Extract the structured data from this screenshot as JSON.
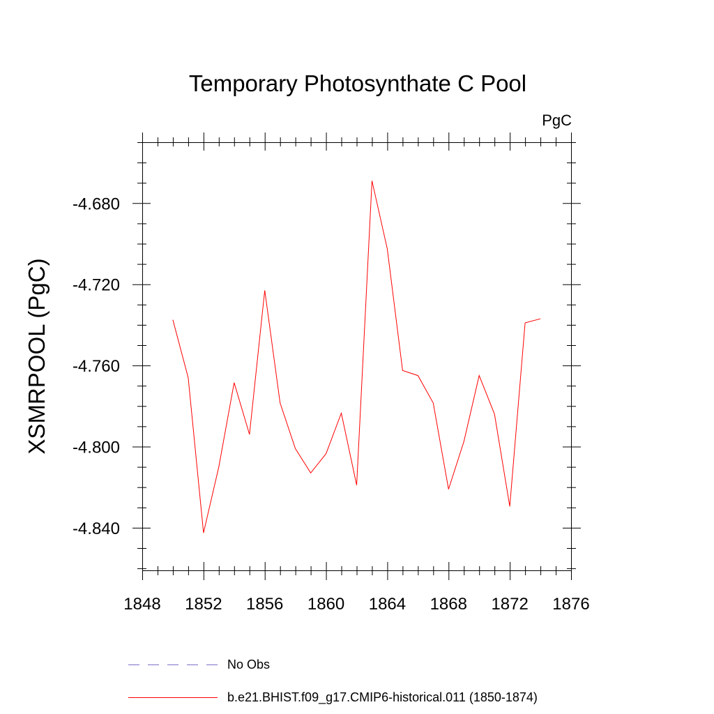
{
  "chart_data": {
    "type": "line",
    "title": "Temporary Photosynthate C Pool",
    "units_label": "PgC",
    "ylabel": "XSMRPOOL  (PgC)",
    "xlabel": "",
    "xlim": [
      1848,
      1876
    ],
    "ylim": [
      -4.861,
      -4.65
    ],
    "x_ticks": [
      1848,
      1852,
      1856,
      1860,
      1864,
      1868,
      1872,
      1876
    ],
    "x_tick_labels": [
      "1848",
      "1852",
      "1856",
      "1860",
      "1864",
      "1868",
      "1872",
      "1876"
    ],
    "y_ticks": [
      -4.68,
      -4.72,
      -4.76,
      -4.8,
      -4.84
    ],
    "y_tick_labels": [
      "-4.680",
      "-4.720",
      "-4.760",
      "-4.800",
      "-4.840"
    ],
    "grid": false,
    "legend_position": "bottom",
    "series": [
      {
        "name": "b.e21.BHIST.f09_g17.CMIP6-historical.011 (1850-1874)",
        "color": "#ff0000",
        "style": "solid",
        "x": [
          1850,
          1851,
          1852,
          1853,
          1854,
          1855,
          1856,
          1857,
          1858,
          1859,
          1860,
          1861,
          1862,
          1863,
          1864,
          1865,
          1866,
          1867,
          1868,
          1869,
          1870,
          1871,
          1872,
          1873,
          1874
        ],
        "y": [
          -4.7375,
          -4.766,
          -4.8425,
          -4.81,
          -4.7685,
          -4.794,
          -4.723,
          -4.7785,
          -4.801,
          -4.813,
          -4.8035,
          -4.7835,
          -4.819,
          -4.669,
          -4.7025,
          -4.7625,
          -4.765,
          -4.7785,
          -4.821,
          -4.7975,
          -4.765,
          -4.784,
          -4.8295,
          -4.739,
          -4.737
        ]
      },
      {
        "name": "No Obs",
        "color": "#7b6fc8",
        "style": "dashed",
        "x": [],
        "y": []
      }
    ]
  }
}
